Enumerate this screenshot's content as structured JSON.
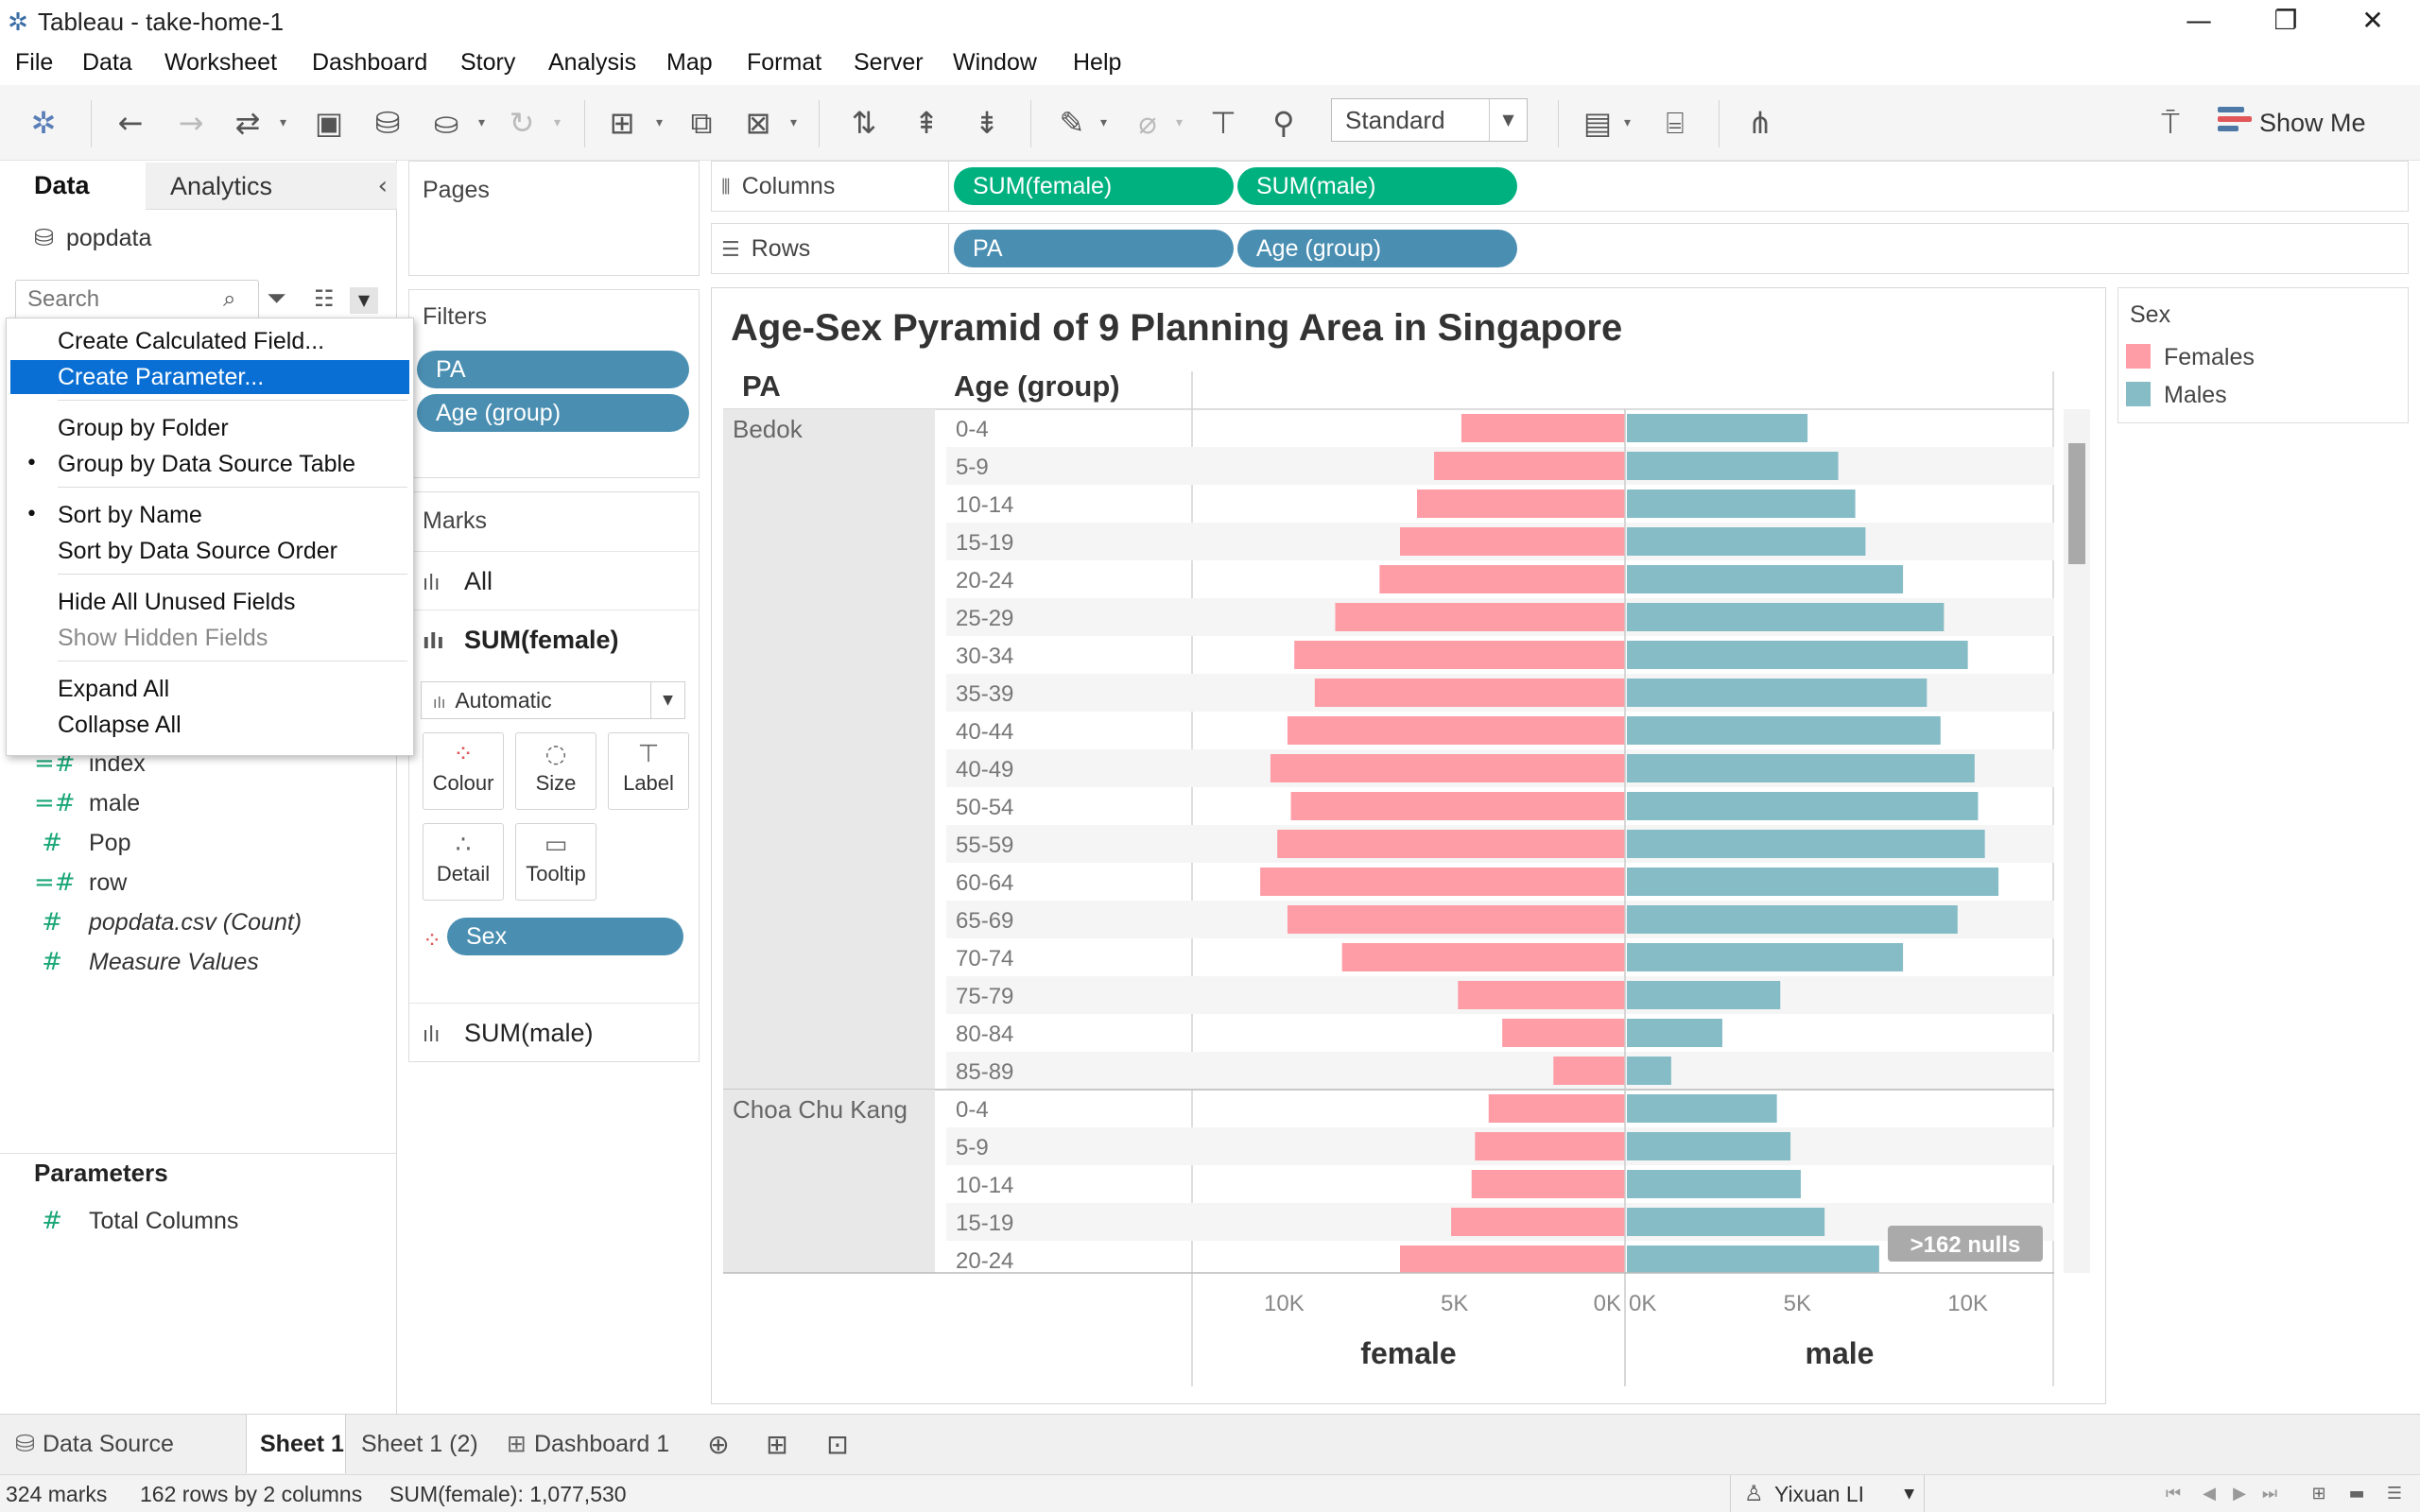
{
  "window": {
    "title": "Tableau - take-home-1",
    "minimize": "—",
    "maximize": "❐",
    "close": "✕"
  },
  "menu": [
    "File",
    "Data",
    "Worksheet",
    "Dashboard",
    "Story",
    "Analysis",
    "Map",
    "Format",
    "Server",
    "Window",
    "Help"
  ],
  "toolbar": {
    "fit": "Standard",
    "show_me": "Show Me"
  },
  "data_pane": {
    "tab_data": "Data",
    "tab_analytics": "Analytics",
    "datasource": "popdata",
    "search_placeholder": "Search",
    "fields": [
      {
        "name": "index",
        "type": "measure-calc"
      },
      {
        "name": "male",
        "type": "measure-calc"
      },
      {
        "name": "Pop",
        "type": "measure"
      },
      {
        "name": "row",
        "type": "measure-calc"
      },
      {
        "name": "popdata.csv (Count)",
        "type": "measure",
        "italic": true
      },
      {
        "name": "Measure Values",
        "type": "measure",
        "italic": true
      }
    ],
    "parameters_title": "Parameters",
    "parameters": [
      "Total Columns"
    ]
  },
  "context_menu": {
    "items": [
      {
        "label": "Create Calculated Field...",
        "state": "normal"
      },
      {
        "label": "Create Parameter...",
        "state": "highlight"
      },
      {
        "label": "Group by Folder",
        "state": "normal"
      },
      {
        "label": "Group by Data Source Table",
        "state": "checked"
      },
      {
        "label": "Sort by Name",
        "state": "checked"
      },
      {
        "label": "Sort by Data Source Order",
        "state": "normal"
      },
      {
        "label": "Hide All Unused Fields",
        "state": "normal"
      },
      {
        "label": "Show Hidden Fields",
        "state": "disabled"
      },
      {
        "label": "Expand All",
        "state": "normal"
      },
      {
        "label": "Collapse All",
        "state": "normal"
      }
    ]
  },
  "pages": {
    "title": "Pages"
  },
  "filters": {
    "title": "Filters",
    "pills": [
      "PA",
      "Age (group)"
    ]
  },
  "marks": {
    "title": "Marks",
    "all": "All",
    "sum_female": "SUM(female)",
    "type": "Automatic",
    "buttons": [
      "Colour",
      "Size",
      "Label",
      "Detail",
      "Tooltip"
    ],
    "sex_pill": "Sex",
    "sum_male": "SUM(male)"
  },
  "columns": {
    "label": "Columns",
    "pills": [
      "SUM(female)",
      "SUM(male)"
    ]
  },
  "rows": {
    "label": "Rows",
    "pills": [
      "PA",
      "Age (group)"
    ]
  },
  "legend": {
    "title": "Sex",
    "items": [
      {
        "label": "Females",
        "color": "#ff9da7"
      },
      {
        "label": "Males",
        "color": "#86bcc6"
      }
    ]
  },
  "chart_data": {
    "type": "bar",
    "title": "Age-Sex Pyramid of 9 Planning Area in Singapore",
    "row_headers": [
      "PA",
      "Age (group)"
    ],
    "xlabel_left": "female",
    "xlabel_right": "male",
    "x_ticks_female": [
      "10K",
      "5K",
      "0K"
    ],
    "x_ticks_male": [
      "0K",
      "5K",
      "10K"
    ],
    "x_range": [
      0,
      12700
    ],
    "null_badge": ">162 nulls",
    "colors": {
      "female": "#ff9da7",
      "male": "#86bcc6"
    },
    "groups": [
      {
        "pa": "Bedok",
        "age_groups": [
          "0-4",
          "5-9",
          "10-14",
          "15-19",
          "20-24",
          "25-29",
          "30-34",
          "35-39",
          "40-44",
          "40-49",
          "50-54",
          "55-59",
          "60-64",
          "65-69",
          "70-74",
          "75-79",
          "80-84",
          "85-89"
        ],
        "female": [
          4800,
          5600,
          6100,
          6600,
          7200,
          8500,
          9700,
          9100,
          9900,
          10400,
          9800,
          10200,
          10700,
          9900,
          8300,
          4900,
          3600,
          2100
        ],
        "male": [
          5300,
          6200,
          6700,
          7000,
          8100,
          9300,
          10000,
          8800,
          9200,
          10200,
          10300,
          10500,
          10900,
          9700,
          8100,
          4500,
          2800,
          1300
        ]
      },
      {
        "pa": "Choa Chu Kang",
        "age_groups": [
          "0-4",
          "5-9",
          "10-14",
          "15-19",
          "20-24"
        ],
        "female": [
          4000,
          4400,
          4500,
          5100,
          6600
        ],
        "male": [
          4400,
          4800,
          5100,
          5800,
          7400
        ]
      }
    ]
  },
  "sheet_tabs": {
    "data_source": "Data Source",
    "tabs": [
      "Sheet 1",
      "Sheet 1 (2)",
      "Dashboard 1"
    ]
  },
  "status": {
    "marks": "324 marks",
    "dims": "162 rows by 2 columns",
    "sum": "SUM(female): 1,077,530",
    "user": "Yixuan LI"
  }
}
